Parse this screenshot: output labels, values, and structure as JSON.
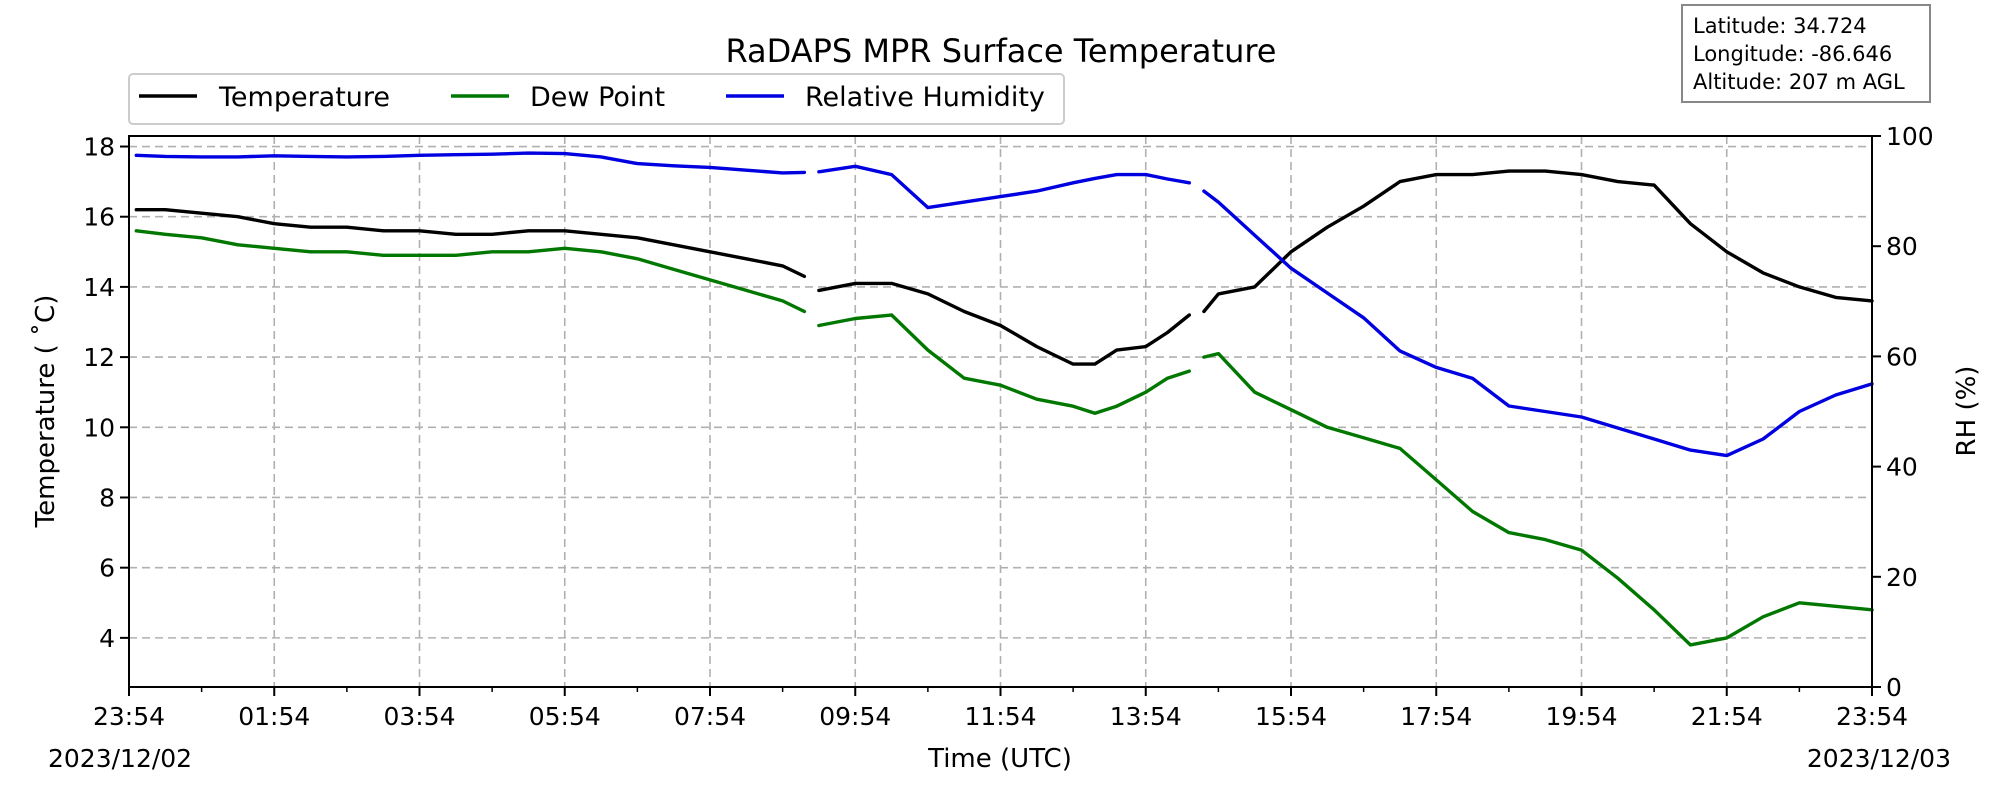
{
  "chart_data": {
    "type": "line",
    "title": "RaDAPS MPR Surface Temperature",
    "xlabel": "Time (UTC)",
    "ylabel": "Temperature ($^\\circ$C)",
    "ylabel_display": "Temperature ( ˚C)",
    "y2label": "RH (%)",
    "x_tick_labels": [
      "23:54",
      "01:54",
      "03:54",
      "05:54",
      "07:54",
      "09:54",
      "11:54",
      "13:54",
      "15:54",
      "17:54",
      "19:54",
      "21:54",
      "23:54"
    ],
    "start_date": "2023/12/02",
    "end_date": "2023/12/03",
    "ylim": [
      2.6,
      18.3
    ],
    "yticks": [
      4,
      6,
      8,
      10,
      12,
      14,
      16,
      18
    ],
    "y2lim": [
      0,
      100
    ],
    "y2ticks": [
      0,
      20,
      40,
      60,
      80,
      100
    ],
    "grid": true,
    "legend_placement": "top-left (above plot)",
    "info_box": {
      "latitude": "Latitude: 34.724",
      "longitude": "Longitude: -86.646",
      "altitude": "Altitude: 207 m AGL"
    },
    "series": [
      {
        "name": "Temperature",
        "axis": "left",
        "color": "#000000",
        "x_hours_note": "hours since 23:54 on 2023/12/02",
        "x": [
          0.1,
          0.5,
          1,
          1.5,
          2,
          2.5,
          3,
          3.5,
          4,
          4.5,
          5,
          5.5,
          6,
          6.5,
          7,
          7.5,
          8,
          8.5,
          9,
          9.3,
          null,
          9.5,
          10,
          10.5,
          11,
          11.5,
          12,
          12.5,
          13,
          13.3,
          13.6,
          14,
          14.3,
          14.6,
          null,
          14.8,
          15,
          15.5,
          16,
          16.5,
          17,
          17.5,
          18,
          18.5,
          19,
          19.5,
          20,
          20.5,
          21,
          21.5,
          22,
          22.5,
          23,
          23.5,
          24
        ],
        "values": [
          16.2,
          16.2,
          16.1,
          16.0,
          15.8,
          15.7,
          15.7,
          15.6,
          15.6,
          15.5,
          15.5,
          15.6,
          15.6,
          15.5,
          15.4,
          15.2,
          15.0,
          14.8,
          14.6,
          14.3,
          null,
          13.9,
          14.1,
          14.1,
          13.8,
          13.3,
          12.9,
          12.3,
          11.8,
          11.8,
          12.2,
          12.3,
          12.7,
          13.2,
          null,
          13.3,
          13.8,
          14.0,
          15.0,
          15.7,
          16.3,
          17.0,
          17.2,
          17.2,
          17.3,
          17.3,
          17.2,
          17.0,
          16.9,
          15.8,
          15.0,
          14.4,
          14.0,
          13.7,
          13.6
        ]
      },
      {
        "name": "Dew Point",
        "axis": "left",
        "color": "#007800",
        "x": [
          0.1,
          0.5,
          1,
          1.5,
          2,
          2.5,
          3,
          3.5,
          4,
          4.5,
          5,
          5.5,
          6,
          6.5,
          7,
          7.5,
          8,
          8.5,
          9,
          9.3,
          null,
          9.5,
          10,
          10.5,
          11,
          11.5,
          12,
          12.5,
          13,
          13.3,
          13.6,
          14,
          14.3,
          14.6,
          null,
          14.8,
          15,
          15.5,
          16,
          16.5,
          17,
          17.5,
          18,
          18.5,
          19,
          19.5,
          20,
          20.5,
          21,
          21.5,
          22,
          22.5,
          23,
          23.5,
          24
        ],
        "values": [
          15.6,
          15.5,
          15.4,
          15.2,
          15.1,
          15.0,
          15.0,
          14.9,
          14.9,
          14.9,
          15.0,
          15.0,
          15.1,
          15.0,
          14.8,
          14.5,
          14.2,
          13.9,
          13.6,
          13.3,
          null,
          12.9,
          13.1,
          13.2,
          12.2,
          11.4,
          11.2,
          10.8,
          10.6,
          10.4,
          10.6,
          11.0,
          11.4,
          11.6,
          null,
          12.0,
          12.1,
          11.0,
          10.5,
          10.0,
          9.7,
          9.4,
          8.5,
          7.6,
          7.0,
          6.8,
          6.5,
          5.7,
          4.8,
          3.8,
          4.0,
          4.6,
          5.0,
          4.9,
          4.8
        ]
      },
      {
        "name": "Relative Humidity",
        "axis": "right",
        "color": "#0000e0",
        "x": [
          0.1,
          0.5,
          1,
          1.5,
          2,
          2.5,
          3,
          3.5,
          4,
          4.5,
          5,
          5.5,
          6,
          6.5,
          7,
          7.5,
          8,
          8.5,
          9,
          9.3,
          null,
          9.5,
          10,
          10.5,
          11,
          11.5,
          12,
          12.5,
          13,
          13.3,
          13.6,
          14,
          14.3,
          14.6,
          null,
          14.8,
          15,
          15.5,
          16,
          16.5,
          17,
          17.5,
          18,
          18.5,
          19,
          19.5,
          20,
          20.5,
          21,
          21.5,
          22,
          22.5,
          23,
          23.5,
          24
        ],
        "values": [
          96.5,
          96.3,
          96.2,
          96.2,
          96.4,
          96.3,
          96.2,
          96.3,
          96.5,
          96.6,
          96.7,
          96.9,
          96.8,
          96.2,
          95.0,
          94.6,
          94.3,
          93.8,
          93.3,
          93.4,
          null,
          93.5,
          94.5,
          93.0,
          87.0,
          88.0,
          89.0,
          90.0,
          91.5,
          92.3,
          93.0,
          93.0,
          92.2,
          91.5,
          null,
          90.0,
          88.0,
          82.0,
          76.0,
          71.5,
          67.0,
          61.0,
          58.0,
          56.0,
          51.0,
          50.0,
          49.0,
          47.0,
          45.0,
          43.0,
          42.0,
          45.0,
          50.0,
          53.0,
          55.0
        ]
      }
    ]
  }
}
